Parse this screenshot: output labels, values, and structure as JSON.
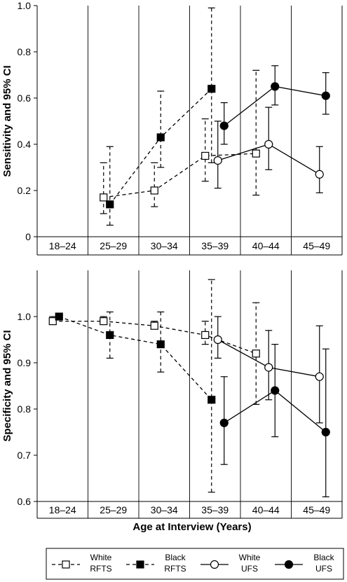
{
  "chart_data": [
    {
      "type": "scatter",
      "panel": "top",
      "ylabel": "Sensitivity and 95% CI",
      "xlabel": "",
      "ylim": [
        0,
        1.0
      ],
      "yticks": [
        "0",
        "0.2",
        "0.4",
        "0.6",
        "0.8",
        "1.0"
      ],
      "categories": [
        "18–24",
        "25–29",
        "30–34",
        "35–39",
        "40–44",
        "45–49"
      ],
      "grid": "vertical separators between age groups",
      "series": [
        {
          "name": "White RFTS",
          "marker": "open-square",
          "line": "dashed",
          "points": [
            {
              "group": "25–29",
              "y": 0.17,
              "lo": 0.1,
              "hi": 0.32
            },
            {
              "group": "30–34",
              "y": 0.2,
              "lo": 0.13,
              "hi": 0.32
            },
            {
              "group": "35–39",
              "y": 0.35,
              "lo": 0.24,
              "hi": 0.51
            },
            {
              "group": "40–44",
              "y": 0.36,
              "lo": 0.18,
              "hi": 0.72
            }
          ]
        },
        {
          "name": "Black RFTS",
          "marker": "filled-square",
          "line": "dashed",
          "points": [
            {
              "group": "25–29",
              "y": 0.14,
              "lo": 0.05,
              "hi": 0.39
            },
            {
              "group": "30–34",
              "y": 0.43,
              "lo": 0.3,
              "hi": 0.63
            },
            {
              "group": "35–39",
              "y": 0.64,
              "lo": 0.32,
              "hi": 0.99
            }
          ]
        },
        {
          "name": "White UFS",
          "marker": "open-circle",
          "line": "solid",
          "points": [
            {
              "group": "35–39",
              "y": 0.33,
              "lo": 0.21,
              "hi": 0.5
            },
            {
              "group": "40–44",
              "y": 0.4,
              "lo": 0.29,
              "hi": 0.56
            },
            {
              "group": "45–49",
              "y": 0.27,
              "lo": 0.19,
              "hi": 0.39
            }
          ]
        },
        {
          "name": "Black UFS",
          "marker": "filled-circle",
          "line": "solid",
          "points": [
            {
              "group": "35–39",
              "y": 0.48,
              "lo": 0.4,
              "hi": 0.58
            },
            {
              "group": "40–44",
              "y": 0.65,
              "lo": 0.57,
              "hi": 0.74
            },
            {
              "group": "45–49",
              "y": 0.61,
              "lo": 0.53,
              "hi": 0.71
            }
          ]
        }
      ]
    },
    {
      "type": "scatter",
      "panel": "bottom",
      "ylabel": "Specificity and 95% CI",
      "xlabel": "Age at Interview (Years)",
      "ylim": [
        0.6,
        1.1
      ],
      "yticks": [
        "0.6",
        "0.7",
        "0.8",
        "0.9",
        "1.0"
      ],
      "categories": [
        "18–24",
        "25–29",
        "30–34",
        "35–39",
        "40–44",
        "45–49"
      ],
      "grid": "vertical separators between age groups",
      "series": [
        {
          "name": "White RFTS",
          "marker": "open-square",
          "line": "dashed",
          "points": [
            {
              "group": "18–24",
              "y": 0.99,
              "lo": 0.985,
              "hi": 1.0
            },
            {
              "group": "25–29",
              "y": 0.99,
              "lo": 0.985,
              "hi": 1.0
            },
            {
              "group": "30–34",
              "y": 0.98,
              "lo": 0.975,
              "hi": 0.99
            },
            {
              "group": "35–39",
              "y": 0.96,
              "lo": 0.94,
              "hi": 0.99
            },
            {
              "group": "40–44",
              "y": 0.92,
              "lo": 0.81,
              "hi": 1.03
            }
          ]
        },
        {
          "name": "Black RFTS",
          "marker": "filled-square",
          "line": "dashed",
          "points": [
            {
              "group": "18–24",
              "y": 1.0,
              "lo": 1.0,
              "hi": 1.0
            },
            {
              "group": "25–29",
              "y": 0.96,
              "lo": 0.91,
              "hi": 1.01
            },
            {
              "group": "30–34",
              "y": 0.94,
              "lo": 0.88,
              "hi": 1.01
            },
            {
              "group": "35–39",
              "y": 0.82,
              "lo": 0.62,
              "hi": 1.08
            }
          ]
        },
        {
          "name": "White UFS",
          "marker": "open-circle",
          "line": "solid",
          "points": [
            {
              "group": "35–39",
              "y": 0.95,
              "lo": 0.91,
              "hi": 1.0
            },
            {
              "group": "40–44",
              "y": 0.89,
              "lo": 0.82,
              "hi": 0.97
            },
            {
              "group": "45–49",
              "y": 0.87,
              "lo": 0.77,
              "hi": 0.98
            }
          ]
        },
        {
          "name": "Black UFS",
          "marker": "filled-circle",
          "line": "solid",
          "points": [
            {
              "group": "35–39",
              "y": 0.77,
              "lo": 0.68,
              "hi": 0.87
            },
            {
              "group": "40–44",
              "y": 0.84,
              "lo": 0.74,
              "hi": 0.94
            },
            {
              "group": "45–49",
              "y": 0.75,
              "lo": 0.61,
              "hi": 0.93
            }
          ]
        }
      ]
    }
  ],
  "legend": {
    "placement": "bottom",
    "items": [
      {
        "line1": "White",
        "line2": "RFTS",
        "marker": "open-square",
        "line": "dashed"
      },
      {
        "line1": "Black",
        "line2": "RFTS",
        "marker": "filled-square",
        "line": "dashed"
      },
      {
        "line1": "White",
        "line2": "UFS",
        "marker": "open-circle",
        "line": "solid"
      },
      {
        "line1": "Black",
        "line2": "UFS",
        "marker": "filled-circle",
        "line": "solid"
      }
    ]
  }
}
